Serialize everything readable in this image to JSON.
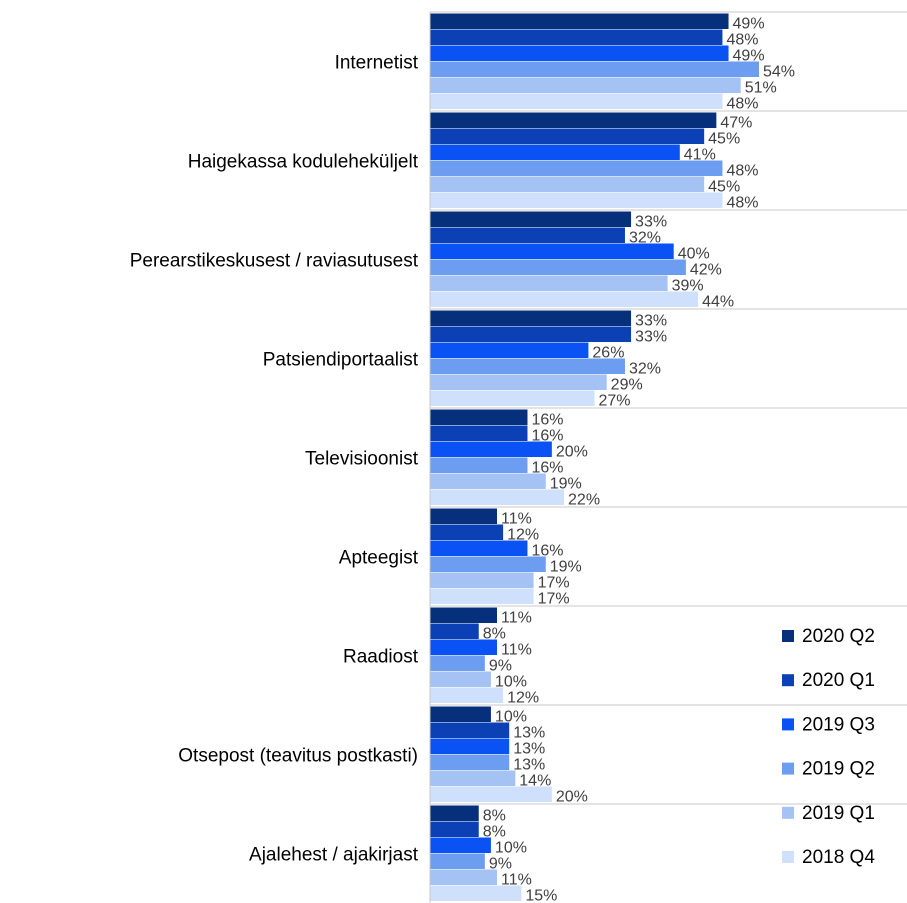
{
  "chart_data": {
    "type": "bar",
    "orientation": "horizontal",
    "categories": [
      "Internetist",
      "Haigekassa koduleheküljelt",
      "Perearstikeskusest / raviasutusest",
      "Patsiendiportaalist",
      "Televisioonist",
      "Apteegist",
      "Raadiost",
      "Otsepost (teavitus postkasti)",
      "Ajalehest / ajakirjast"
    ],
    "series": [
      {
        "name": "2020 Q2",
        "color": "#062f7c",
        "values": [
          49,
          47,
          33,
          33,
          16,
          11,
          11,
          10,
          8
        ],
        "value_labels": [
          "49%",
          "47%",
          "33%",
          "33%",
          "16%",
          "11%",
          "11%",
          "10%",
          "8%"
        ]
      },
      {
        "name": "2020 Q1",
        "color": "#0b41b5",
        "values": [
          48,
          45,
          32,
          33,
          16,
          12,
          8,
          13,
          8
        ],
        "value_labels": [
          "48%",
          "45%",
          "32%",
          "33%",
          "16%",
          "12%",
          "8%",
          "13%",
          "8%"
        ]
      },
      {
        "name": "2019 Q3",
        "color": "#0a52f4",
        "values": [
          49,
          41,
          40,
          26,
          20,
          16,
          11,
          13,
          10
        ],
        "value_labels": [
          "49%",
          "41%",
          "40%",
          "26%",
          "20%",
          "16%",
          "11%",
          "13%",
          "10%"
        ]
      },
      {
        "name": "2019 Q2",
        "color": "#6d9df0",
        "values": [
          54,
          48,
          42,
          32,
          16,
          19,
          9,
          13,
          9
        ],
        "value_labels": [
          "54%",
          "48%",
          "42%",
          "32%",
          "16%",
          "19%",
          "9%",
          "13%",
          "9%"
        ]
      },
      {
        "name": "2019 Q1",
        "color": "#a4c2f4",
        "values": [
          51,
          45,
          39,
          29,
          19,
          17,
          10,
          14,
          11
        ],
        "value_labels": [
          "51%",
          "45%",
          "39%",
          "29%",
          "19%",
          "17%",
          "10%",
          "14%",
          "11%"
        ]
      },
      {
        "name": "2018 Q4",
        "color": "#cfe0fc",
        "values": [
          48,
          48,
          44,
          27,
          22,
          17,
          12,
          20,
          15
        ],
        "value_labels": [
          "48%",
          "48%",
          "44%",
          "27%",
          "22%",
          "17%",
          "12%",
          "20%",
          "15%"
        ]
      }
    ]
  }
}
